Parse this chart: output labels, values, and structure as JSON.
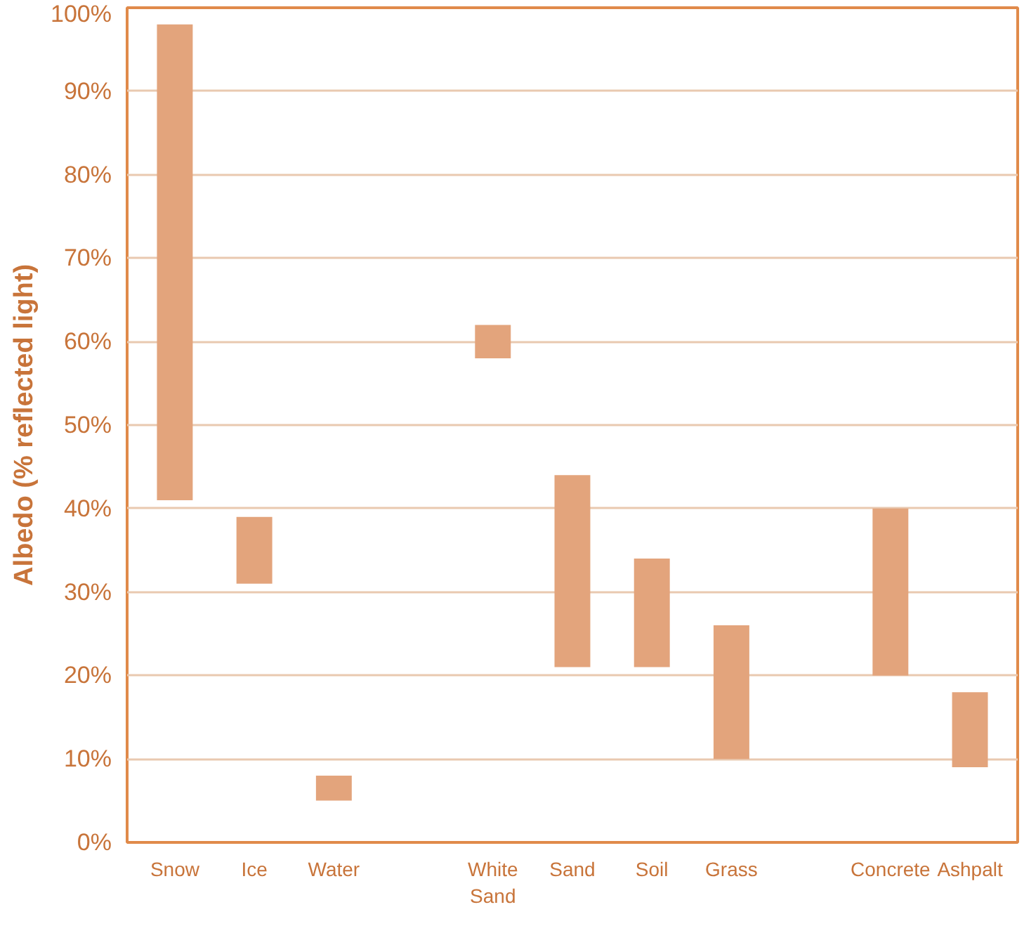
{
  "chart_data": {
    "type": "bar",
    "ylabel": "Albedo (% reflected light)",
    "categories": [
      "Snow",
      "Ice",
      "Water",
      null,
      "White Sand",
      "Sand",
      "Soil",
      "Grass",
      null,
      "Concrete",
      "Ashpalt"
    ],
    "base": [
      41,
      31,
      5,
      null,
      58,
      21,
      21,
      10,
      null,
      20,
      9
    ],
    "values": [
      57,
      8,
      3,
      null,
      4,
      23,
      13,
      16,
      null,
      20,
      9
    ],
    "color": "#e3a47c",
    "ylim": [
      0,
      100
    ],
    "yticks": [
      {
        "value": 0,
        "label": "0%"
      },
      {
        "value": 10,
        "label": "10%"
      },
      {
        "value": 20,
        "label": "20%"
      },
      {
        "value": 30,
        "label": "30%"
      },
      {
        "value": 40,
        "label": "40%"
      },
      {
        "value": 50,
        "label": "50%"
      },
      {
        "value": 60,
        "label": "60%"
      },
      {
        "value": 70,
        "label": "70%"
      },
      {
        "value": 80,
        "label": "80%"
      },
      {
        "value": 90,
        "label": "90%"
      },
      {
        "value": 100,
        "label": "100%"
      }
    ],
    "grid": "y"
  }
}
